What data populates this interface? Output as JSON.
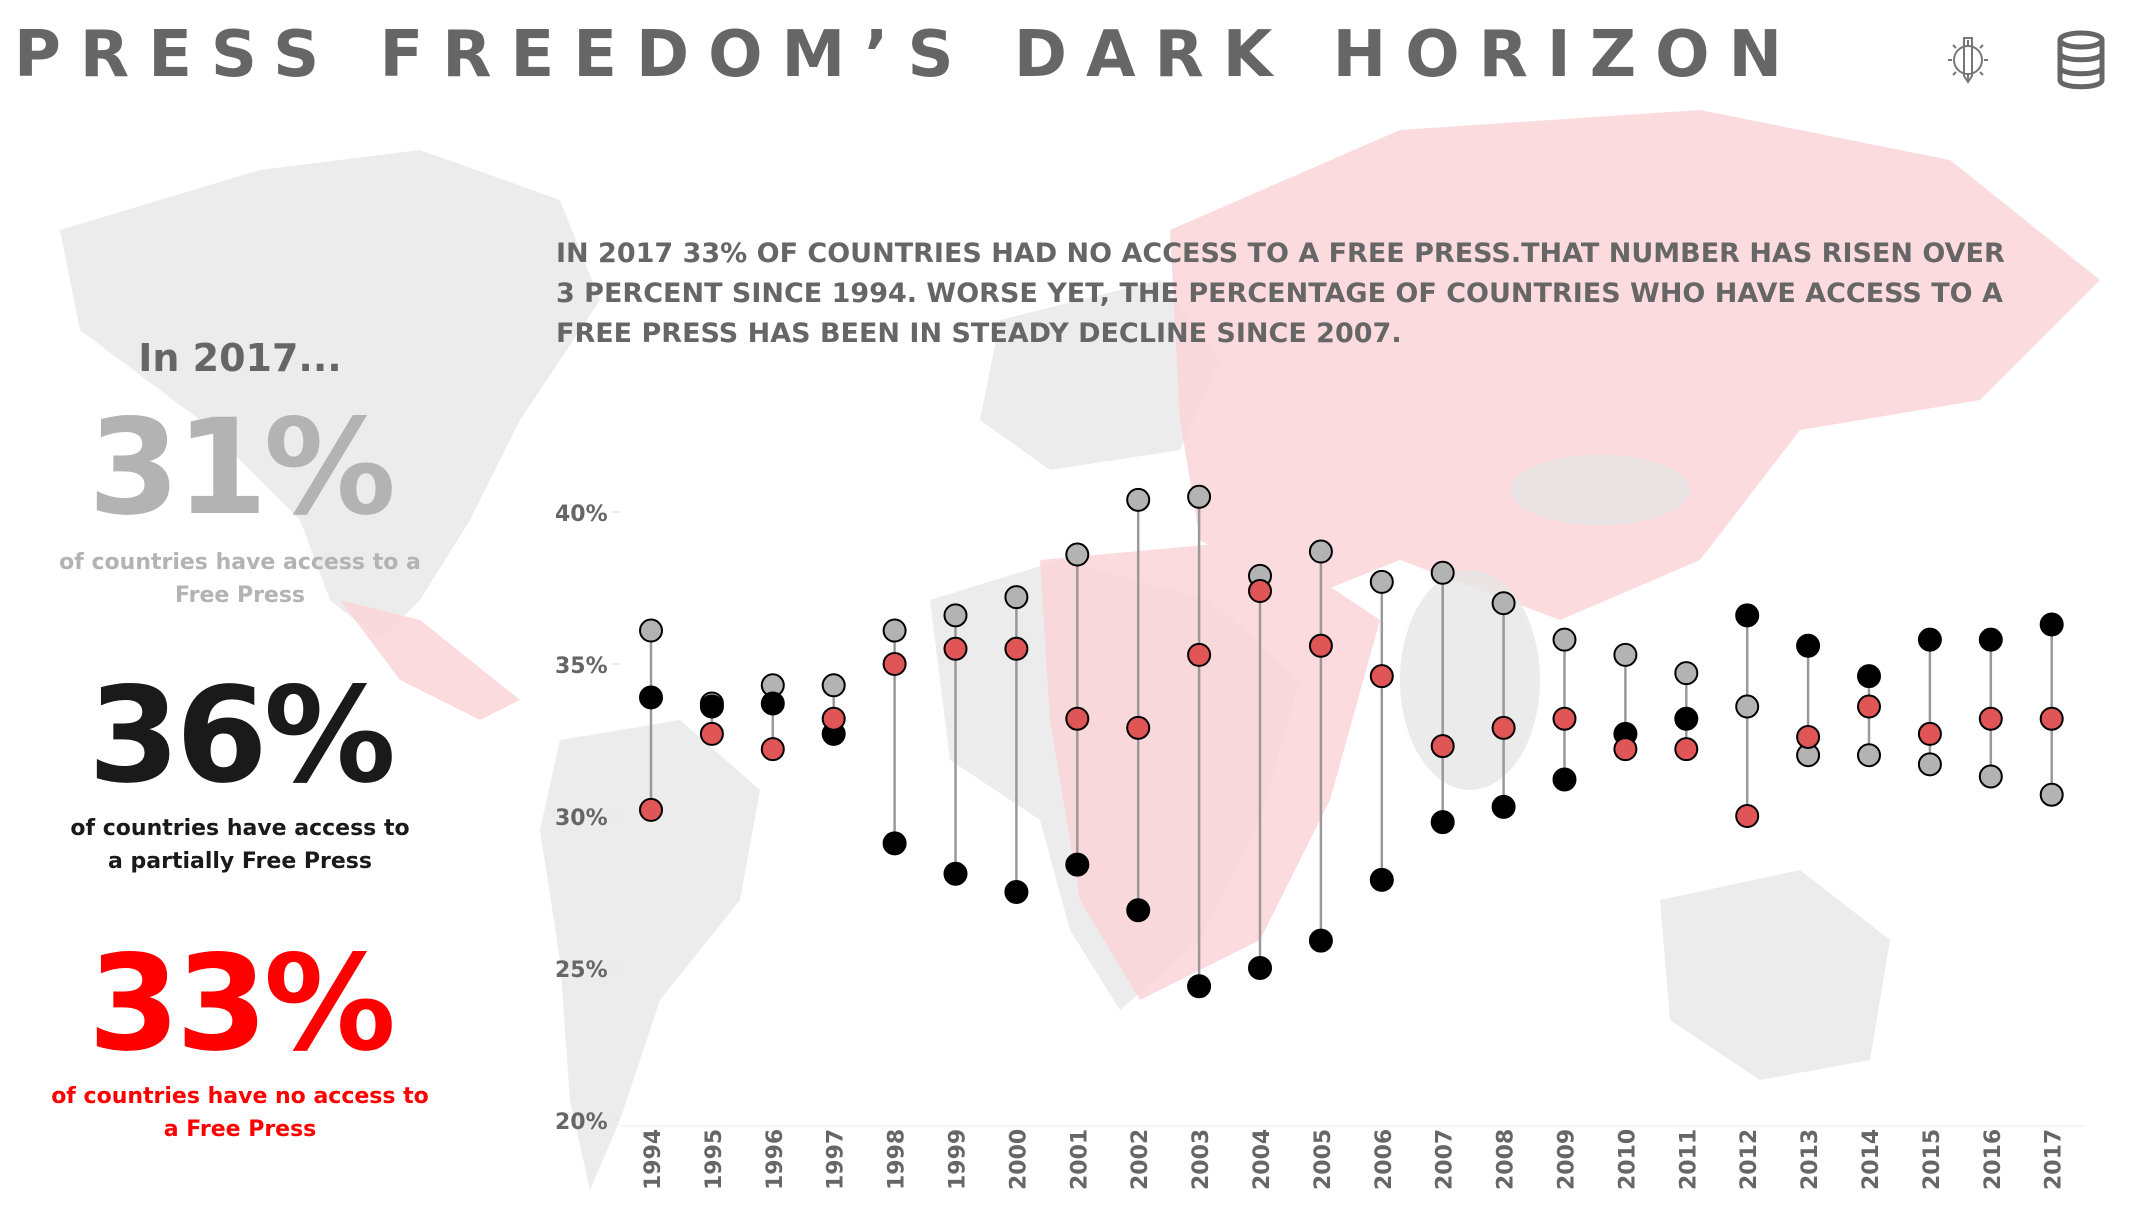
{
  "header": {
    "title": "PRESS FREEDOM’S DARK HORIZON",
    "icons": [
      "tools-gear-pencil-icon",
      "database-icon"
    ]
  },
  "summary": {
    "intro": "In 2017...",
    "free": {
      "value": "31%",
      "caption": "of countries have access to a Free Press",
      "color": "#b3b3b3"
    },
    "partial": {
      "value": "36%",
      "caption": "of countries have access to a partially Free Press",
      "color": "#1a1a1a"
    },
    "none": {
      "value": "33%",
      "caption": "of countries have no access to a Free Press",
      "color": "#ff0000"
    }
  },
  "narrative": "IN 2017 33% OF COUNTRIES HAD NO ACCESS TO A FREE PRESS.THAT NUMBER HAS RISEN OVER 3 PERCENT SINCE 1994. WORSE YET, THE PERCENTAGE OF COUNTRIES WHO HAVE ACCESS TO A FREE PRESS HAS BEEN IN STEADY DECLINE SINCE 2007.",
  "chart_data": {
    "type": "scatter",
    "subtype": "dumbbell",
    "title": "",
    "xlabel": "",
    "ylabel": "",
    "ylim": [
      20,
      41
    ],
    "yticks": [
      "20%",
      "25%",
      "30%",
      "35%",
      "40%"
    ],
    "ytick_values": [
      20,
      25,
      30,
      35,
      40
    ],
    "categories": [
      "1994",
      "1995",
      "1996",
      "1997",
      "1998",
      "1999",
      "2000",
      "2001",
      "2002",
      "2003",
      "2004",
      "2005",
      "2006",
      "2007",
      "2008",
      "2009",
      "2010",
      "2011",
      "2012",
      "2013",
      "2014",
      "2015",
      "2016",
      "2017"
    ],
    "series": [
      {
        "name": "Free",
        "color": "#b3b3b3",
        "values": [
          36.1,
          33.7,
          34.3,
          34.3,
          36.1,
          36.6,
          37.2,
          38.6,
          40.4,
          40.5,
          37.9,
          38.7,
          37.7,
          38.0,
          37.0,
          35.8,
          35.3,
          34.7,
          33.6,
          32.0,
          32.0,
          31.7,
          31.3,
          30.7
        ]
      },
      {
        "name": "Partly Free",
        "color": "#000000",
        "values": [
          33.9,
          33.6,
          33.7,
          32.7,
          29.1,
          28.1,
          27.5,
          28.4,
          26.9,
          24.4,
          25.0,
          25.9,
          27.9,
          29.8,
          30.3,
          31.2,
          32.7,
          33.2,
          36.6,
          35.6,
          34.6,
          35.8,
          35.8,
          36.3
        ]
      },
      {
        "name": "Not Free",
        "color": "#e05555",
        "values": [
          30.2,
          32.7,
          32.2,
          33.2,
          35.0,
          35.5,
          35.5,
          33.2,
          32.9,
          35.3,
          37.4,
          35.6,
          34.6,
          32.3,
          32.9,
          33.2,
          32.2,
          32.2,
          30.0,
          32.6,
          33.6,
          32.7,
          33.2,
          33.2
        ]
      }
    ],
    "grid": false,
    "legend": "none"
  }
}
